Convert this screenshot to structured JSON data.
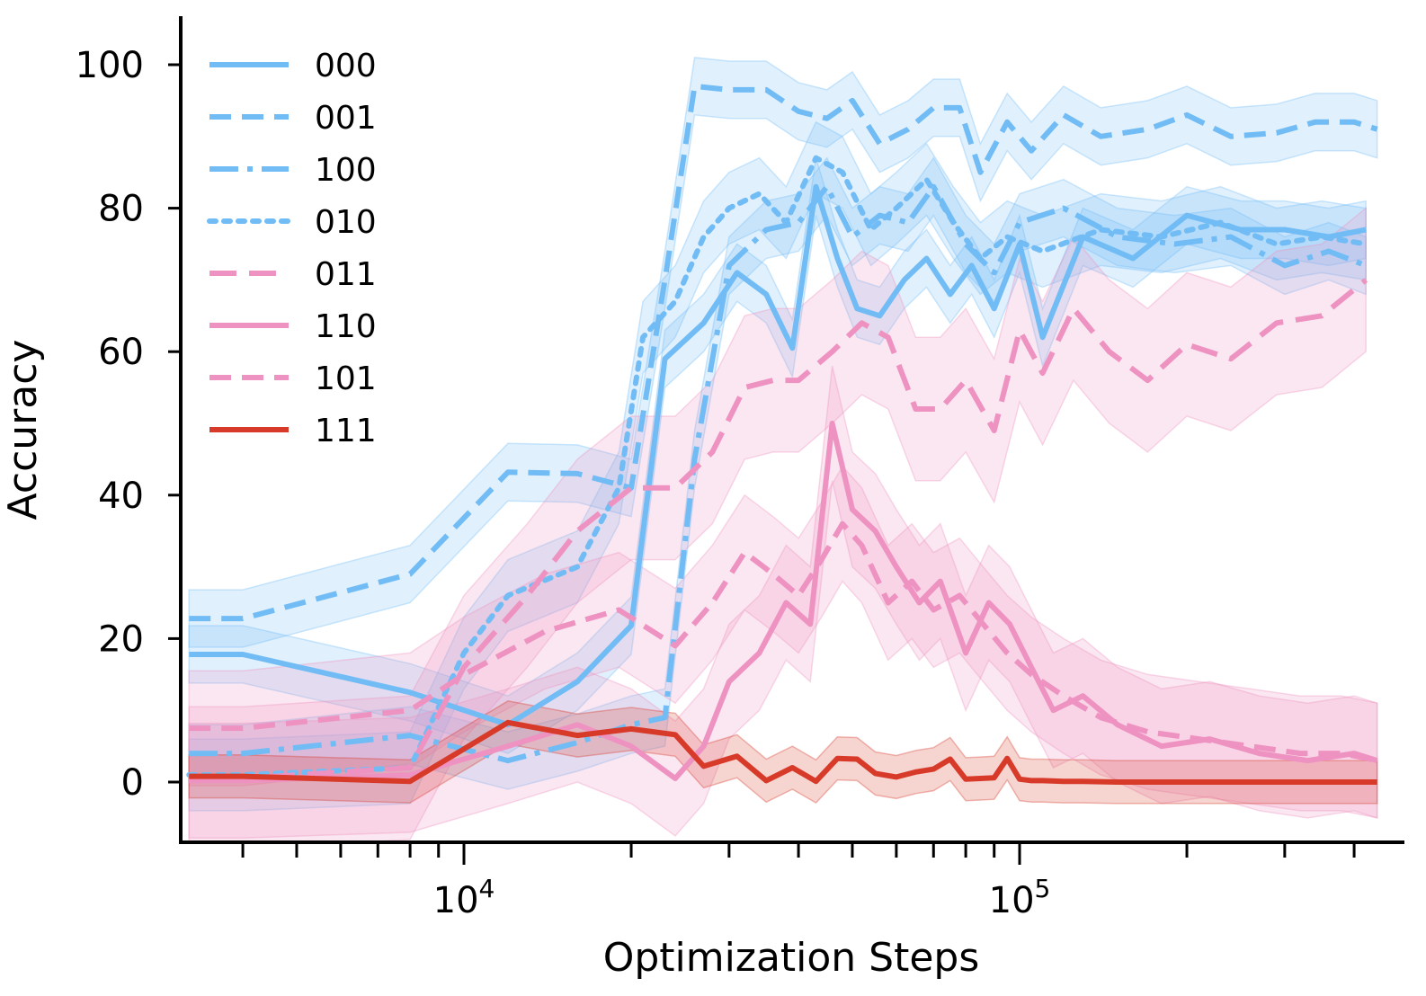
{
  "chart_data": {
    "type": "line",
    "title": "",
    "xlabel": "Optimization Steps",
    "ylabel": "Accuracy",
    "xscale": "log",
    "xlim": [
      3200,
      450000
    ],
    "ylim": [
      -8,
      107
    ],
    "yticks": [
      0,
      20,
      40,
      60,
      80,
      100
    ],
    "xticks_major": [
      {
        "value": 10000,
        "base": "10",
        "exp": "4"
      },
      {
        "value": 100000,
        "base": "10",
        "exp": "5"
      }
    ],
    "xticks_minor": [
      4000,
      5000,
      6000,
      7000,
      8000,
      9000,
      20000,
      30000,
      40000,
      50000,
      60000,
      70000,
      80000,
      90000,
      200000,
      300000,
      400000
    ],
    "grid": false,
    "legend_position": "top-left",
    "series": [
      {
        "name": "000",
        "color": "#72bcf5",
        "dash": "solid",
        "x": [
          3200,
          4000,
          8000,
          12000,
          16000,
          20000,
          23000,
          27000,
          31000,
          35000,
          39000,
          43000,
          47000,
          51000,
          56000,
          62000,
          68000,
          75000,
          82000,
          90000,
          100000,
          110000,
          130000,
          160000,
          200000,
          250000,
          300000,
          360000,
          420000
        ],
        "y": [
          17.8,
          17.8,
          12.5,
          8,
          14,
          21.8,
          59,
          64,
          71,
          68,
          60.5,
          83,
          73,
          66,
          65,
          70,
          73,
          68,
          72,
          66,
          75,
          62,
          76,
          73,
          79,
          77,
          77,
          76,
          77
        ],
        "band": 4
      },
      {
        "name": "001",
        "color": "#72bcf5",
        "dash": "24,12",
        "x": [
          3200,
          4000,
          8000,
          12000,
          16000,
          20000,
          23000,
          26000,
          30000,
          35000,
          40000,
          45000,
          50000,
          56000,
          63000,
          70000,
          78000,
          85000,
          95000,
          105000,
          120000,
          140000,
          170000,
          200000,
          240000,
          290000,
          340000,
          400000,
          440000
        ],
        "y": [
          22.8,
          22.8,
          29,
          43.2,
          43,
          41,
          70,
          97,
          96.5,
          96.5,
          93.5,
          92.5,
          95,
          89,
          91,
          94,
          94,
          85,
          92,
          88,
          93,
          90,
          91,
          93,
          90,
          90.5,
          92,
          92,
          91
        ],
        "band": 4
      },
      {
        "name": "100",
        "color": "#72bcf5",
        "dash": "32,10,6,10",
        "x": [
          3200,
          4000,
          8000,
          12000,
          16000,
          20000,
          23000,
          26000,
          30000,
          35000,
          40000,
          45000,
          50000,
          56000,
          63000,
          70000,
          80000,
          90000,
          100000,
          120000,
          150000,
          190000,
          240000,
          300000,
          360000,
          420000
        ],
        "y": [
          4,
          4,
          6.5,
          3,
          5.5,
          8,
          9,
          45,
          72,
          77,
          78,
          83,
          76,
          79,
          78,
          83,
          75,
          71,
          78,
          80,
          76,
          75,
          76,
          72,
          74,
          72
        ],
        "band": 4
      },
      {
        "name": "010",
        "color": "#72bcf5",
        "dash": "7,9",
        "x": [
          3200,
          4000,
          8000,
          10000,
          12000,
          16000,
          19000,
          21000,
          24000,
          27000,
          30000,
          34000,
          38000,
          43000,
          48000,
          54000,
          60000,
          68000,
          76000,
          85000,
          95000,
          110000,
          140000,
          180000,
          230000,
          290000,
          350000,
          420000
        ],
        "y": [
          1,
          1,
          2,
          18,
          26,
          30,
          41,
          62,
          67,
          76,
          80,
          82,
          78,
          87,
          85,
          77,
          80,
          84,
          78,
          73,
          76,
          74,
          77,
          76,
          78,
          75,
          76,
          75
        ],
        "band": 5
      },
      {
        "name": "011",
        "color": "#ee93c1",
        "dash": "30,14",
        "x": [
          3200,
          4000,
          8000,
          10000,
          13000,
          16000,
          20000,
          24000,
          28000,
          32000,
          36000,
          40000,
          46000,
          52000,
          58000,
          65000,
          72000,
          80000,
          90000,
          100000,
          110000,
          125000,
          145000,
          170000,
          200000,
          240000,
          290000,
          350000,
          420000
        ],
        "y": [
          0.5,
          0.5,
          2,
          16,
          26,
          35,
          41,
          41,
          46,
          55,
          56,
          56,
          60,
          64,
          62,
          52,
          52,
          56,
          49,
          63,
          57,
          66,
          60,
          56,
          61,
          59,
          64,
          65,
          70
        ],
        "band": 10
      },
      {
        "name": "110",
        "color": "#ee93c1",
        "dash": "solid",
        "x": [
          3200,
          4000,
          8000,
          12000,
          16000,
          20000,
          24000,
          27000,
          30000,
          34000,
          38000,
          42000,
          46000,
          50000,
          55000,
          60000,
          66000,
          72000,
          80000,
          88000,
          96000,
          105000,
          115000,
          130000,
          150000,
          180000,
          220000,
          270000,
          330000,
          400000,
          440000
        ],
        "y": [
          0.2,
          0.2,
          1,
          5,
          8,
          5,
          0.5,
          5,
          14,
          18,
          25,
          22,
          50,
          38,
          35,
          30,
          25,
          28,
          18,
          25,
          22,
          16,
          10,
          12,
          8,
          5,
          6,
          4,
          3,
          4,
          3
        ],
        "band": 8
      },
      {
        "name": "101",
        "color": "#ee93c1",
        "dash": "24,12",
        "x": [
          3200,
          4000,
          8000,
          10000,
          14000,
          19000,
          24000,
          28000,
          32000,
          36000,
          40000,
          44000,
          48000,
          52000,
          58000,
          64000,
          70000,
          78000,
          86000,
          95000,
          105000,
          120000,
          140000,
          170000,
          210000,
          260000,
          320000,
          380000,
          440000
        ],
        "y": [
          7.5,
          7.5,
          10,
          15,
          21,
          24,
          19,
          25,
          32,
          29,
          26,
          31,
          36,
          33,
          25,
          28,
          24,
          26,
          22,
          18,
          15,
          12,
          9,
          7,
          6,
          5,
          4,
          4,
          3
        ],
        "band": 8
      },
      {
        "name": "111",
        "color": "#d83a2a",
        "dash": "solid",
        "x": [
          3200,
          4000,
          8000,
          12000,
          16000,
          20000,
          24000,
          27000,
          31000,
          35000,
          39000,
          43000,
          47000,
          51000,
          55000,
          60000,
          65000,
          70000,
          75000,
          80000,
          85000,
          90000,
          95000,
          100000,
          105000,
          110000,
          120000,
          130000,
          150000,
          200000,
          300000,
          440000
        ],
        "y": [
          0.8,
          0.8,
          0.1,
          8.3,
          6.5,
          7.4,
          6.6,
          2.2,
          3.6,
          0.2,
          2,
          0.1,
          3.3,
          3.2,
          1.2,
          0.7,
          1.4,
          1.8,
          3.2,
          0.4,
          0.5,
          0.6,
          3.3,
          0.4,
          0.2,
          0.2,
          0.1,
          0.1,
          0,
          0,
          0,
          0
        ],
        "band": 3
      }
    ]
  }
}
